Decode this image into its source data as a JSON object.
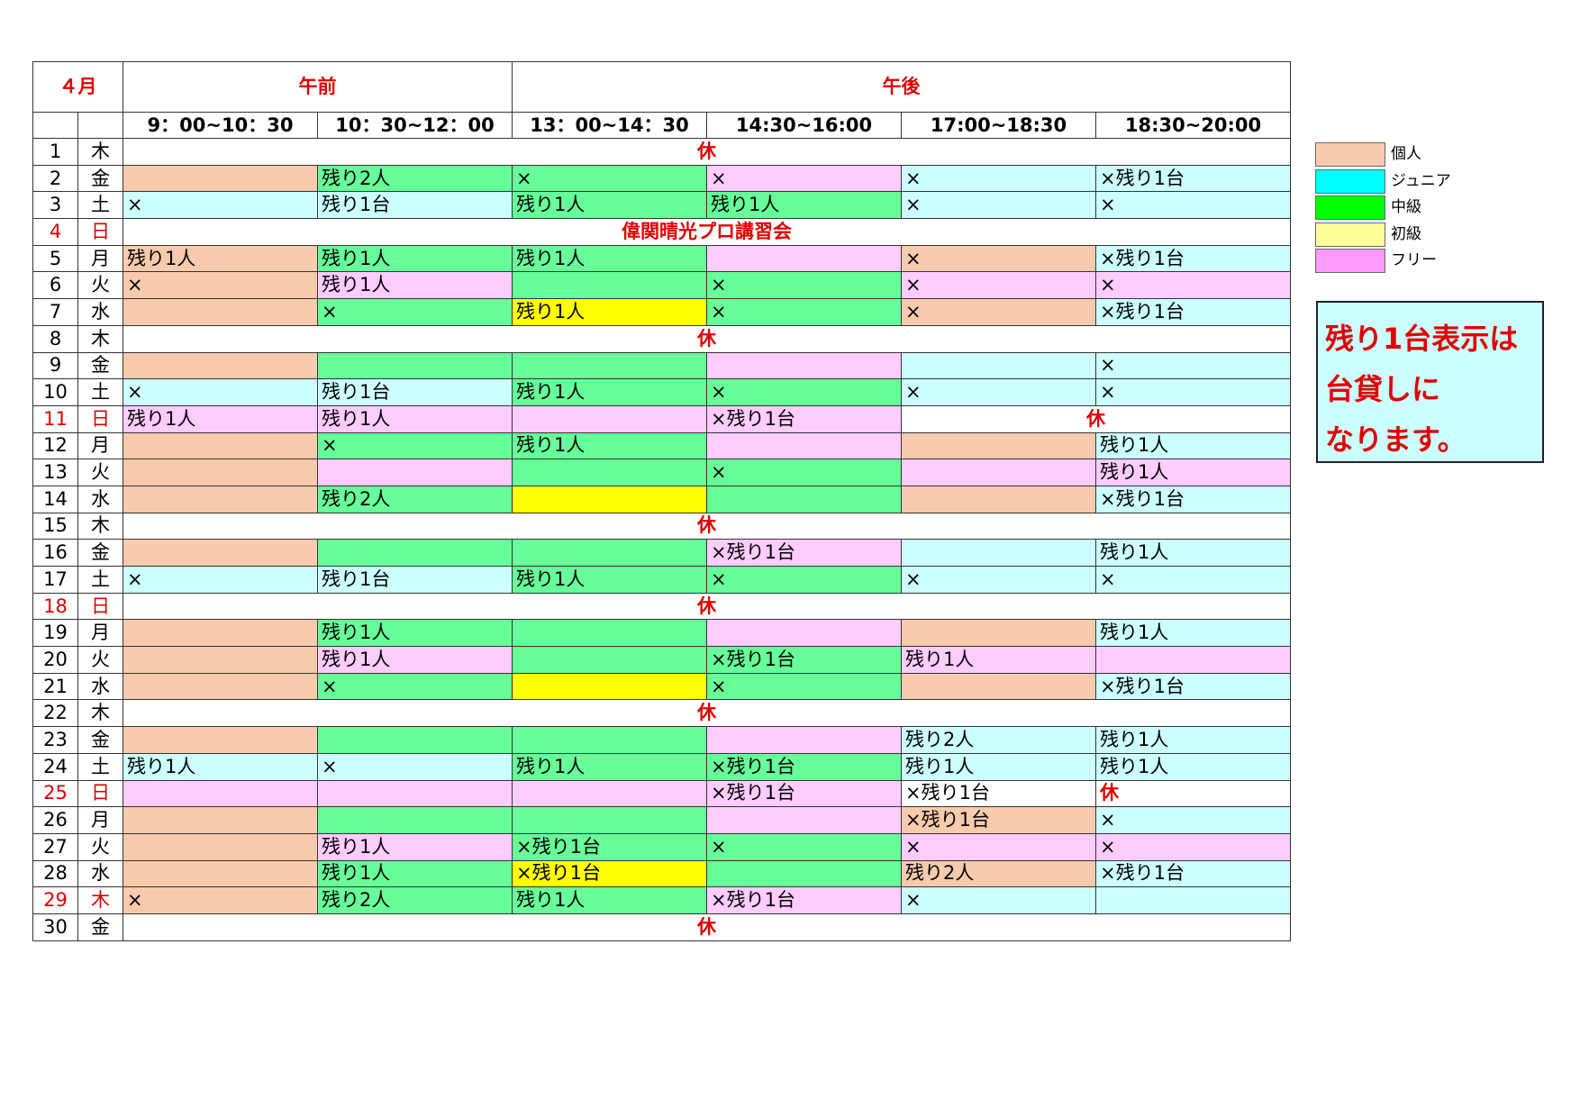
{
  "header": {
    "month": "４月",
    "am": "午前",
    "pm": "午後",
    "times": [
      "9：00~10：30",
      "10：30~12：00",
      "13：00~14：30",
      "14:30~16:00",
      "17:00~18:30",
      "18:30~20:00"
    ]
  },
  "colors": {
    "kojin": "#f8cbad",
    "junior": "#ccffff",
    "chukyu": "#66ff99",
    "shokyu": "#ffff00",
    "free": "#ffccff",
    "holiday_red": "#e00000"
  },
  "rows": [
    {
      "day": "1",
      "dow": "木",
      "red": false,
      "closed": "休"
    },
    {
      "day": "2",
      "dow": "金",
      "red": false,
      "slots": [
        {
          "t": "",
          "c": "kojin"
        },
        {
          "t": "残り2人",
          "c": "chukyu"
        },
        {
          "t": "×",
          "c": "chukyu"
        },
        {
          "t": "×",
          "c": "free"
        },
        {
          "t": "×",
          "c": "junior"
        },
        {
          "t": "×残り1台",
          "c": "junior"
        }
      ]
    },
    {
      "day": "3",
      "dow": "土",
      "red": false,
      "slots": [
        {
          "t": "×",
          "c": "junior"
        },
        {
          "t": "残り1台",
          "c": "junior"
        },
        {
          "t": "残り1人",
          "c": "chukyu"
        },
        {
          "t": "残り1人",
          "c": "chukyu"
        },
        {
          "t": "×",
          "c": "junior"
        },
        {
          "t": "×",
          "c": "junior"
        }
      ]
    },
    {
      "day": "4",
      "dow": "日",
      "red": true,
      "closed": "偉関晴光プロ講習会"
    },
    {
      "day": "5",
      "dow": "月",
      "red": false,
      "slots": [
        {
          "t": "残り1人",
          "c": "kojin"
        },
        {
          "t": "残り1人",
          "c": "chukyu"
        },
        {
          "t": "残り1人",
          "c": "chukyu"
        },
        {
          "t": "",
          "c": "free"
        },
        {
          "t": "×",
          "c": "kojin"
        },
        {
          "t": "×残り1台",
          "c": "junior"
        }
      ]
    },
    {
      "day": "6",
      "dow": "火",
      "red": false,
      "slots": [
        {
          "t": "×",
          "c": "kojin"
        },
        {
          "t": "残り1人",
          "c": "free"
        },
        {
          "t": "",
          "c": "chukyu"
        },
        {
          "t": "×",
          "c": "chukyu"
        },
        {
          "t": "×",
          "c": "free"
        },
        {
          "t": "×",
          "c": "free"
        }
      ]
    },
    {
      "day": "7",
      "dow": "水",
      "red": false,
      "slots": [
        {
          "t": "",
          "c": "kojin"
        },
        {
          "t": "×",
          "c": "chukyu"
        },
        {
          "t": "残り1人",
          "c": "shokyu"
        },
        {
          "t": "×",
          "c": "chukyu"
        },
        {
          "t": "×",
          "c": "kojin"
        },
        {
          "t": "×残り1台",
          "c": "junior"
        }
      ]
    },
    {
      "day": "8",
      "dow": "木",
      "red": false,
      "closed": "休"
    },
    {
      "day": "9",
      "dow": "金",
      "red": false,
      "slots": [
        {
          "t": "",
          "c": "kojin"
        },
        {
          "t": "",
          "c": "chukyu"
        },
        {
          "t": "",
          "c": "chukyu"
        },
        {
          "t": "",
          "c": "free"
        },
        {
          "t": "",
          "c": "junior"
        },
        {
          "t": "×",
          "c": "junior"
        }
      ]
    },
    {
      "day": "10",
      "dow": "土",
      "red": false,
      "slots": [
        {
          "t": "×",
          "c": "junior"
        },
        {
          "t": "残り1台",
          "c": "junior"
        },
        {
          "t": "残り1人",
          "c": "chukyu"
        },
        {
          "t": "×",
          "c": "chukyu"
        },
        {
          "t": "×",
          "c": "junior"
        },
        {
          "t": "×",
          "c": "junior"
        }
      ]
    },
    {
      "day": "11",
      "dow": "日",
      "red": true,
      "slots": [
        {
          "t": "残り1人",
          "c": "free"
        },
        {
          "t": "残り1人",
          "c": "free"
        },
        {
          "t": "",
          "c": "free"
        },
        {
          "t": "×残り1台",
          "c": "free"
        }
      ],
      "late_closed": "休"
    },
    {
      "day": "12",
      "dow": "月",
      "red": false,
      "slots": [
        {
          "t": "",
          "c": "kojin"
        },
        {
          "t": "×",
          "c": "chukyu"
        },
        {
          "t": "残り1人",
          "c": "chukyu"
        },
        {
          "t": "",
          "c": "free"
        },
        {
          "t": "",
          "c": "kojin"
        },
        {
          "t": "残り1人",
          "c": "junior"
        }
      ]
    },
    {
      "day": "13",
      "dow": "火",
      "red": false,
      "slots": [
        {
          "t": "",
          "c": "kojin"
        },
        {
          "t": "",
          "c": "free"
        },
        {
          "t": "",
          "c": "chukyu"
        },
        {
          "t": "×",
          "c": "chukyu"
        },
        {
          "t": "",
          "c": "free"
        },
        {
          "t": "残り1人",
          "c": "free"
        }
      ]
    },
    {
      "day": "14",
      "dow": "水",
      "red": false,
      "slots": [
        {
          "t": "",
          "c": "kojin"
        },
        {
          "t": "残り2人",
          "c": "chukyu"
        },
        {
          "t": "",
          "c": "shokyu"
        },
        {
          "t": "",
          "c": "chukyu"
        },
        {
          "t": "",
          "c": "kojin"
        },
        {
          "t": "×残り1台",
          "c": "junior"
        }
      ]
    },
    {
      "day": "15",
      "dow": "木",
      "red": false,
      "closed": "休"
    },
    {
      "day": "16",
      "dow": "金",
      "red": false,
      "slots": [
        {
          "t": "",
          "c": "kojin"
        },
        {
          "t": "",
          "c": "chukyu"
        },
        {
          "t": "",
          "c": "chukyu"
        },
        {
          "t": "×残り1台",
          "c": "free"
        },
        {
          "t": "",
          "c": "junior"
        },
        {
          "t": "残り1人",
          "c": "junior"
        }
      ]
    },
    {
      "day": "17",
      "dow": "土",
      "red": false,
      "slots": [
        {
          "t": "×",
          "c": "junior"
        },
        {
          "t": "残り1台",
          "c": "junior"
        },
        {
          "t": "残り1人",
          "c": "chukyu"
        },
        {
          "t": "×",
          "c": "chukyu"
        },
        {
          "t": "×",
          "c": "junior"
        },
        {
          "t": "×",
          "c": "junior"
        }
      ]
    },
    {
      "day": "18",
      "dow": "日",
      "red": true,
      "closed": "休"
    },
    {
      "day": "19",
      "dow": "月",
      "red": false,
      "slots": [
        {
          "t": "",
          "c": "kojin"
        },
        {
          "t": "残り1人",
          "c": "chukyu"
        },
        {
          "t": "",
          "c": "chukyu"
        },
        {
          "t": "",
          "c": "free"
        },
        {
          "t": "",
          "c": "kojin"
        },
        {
          "t": "残り1人",
          "c": "junior"
        }
      ]
    },
    {
      "day": "20",
      "dow": "火",
      "red": false,
      "slots": [
        {
          "t": "",
          "c": "kojin"
        },
        {
          "t": "残り1人",
          "c": "free"
        },
        {
          "t": "",
          "c": "chukyu"
        },
        {
          "t": "×残り1台",
          "c": "chukyu"
        },
        {
          "t": "残り1人",
          "c": "free"
        },
        {
          "t": "",
          "c": "free"
        }
      ]
    },
    {
      "day": "21",
      "dow": "水",
      "red": false,
      "slots": [
        {
          "t": "",
          "c": "kojin"
        },
        {
          "t": "×",
          "c": "chukyu"
        },
        {
          "t": "",
          "c": "shokyu"
        },
        {
          "t": "×",
          "c": "chukyu"
        },
        {
          "t": "",
          "c": "kojin"
        },
        {
          "t": "×残り1台",
          "c": "junior"
        }
      ]
    },
    {
      "day": "22",
      "dow": "木",
      "red": false,
      "closed": "休"
    },
    {
      "day": "23",
      "dow": "金",
      "red": false,
      "slots": [
        {
          "t": "",
          "c": "kojin"
        },
        {
          "t": "",
          "c": "chukyu"
        },
        {
          "t": "",
          "c": "chukyu"
        },
        {
          "t": "",
          "c": "free"
        },
        {
          "t": "残り2人",
          "c": "junior"
        },
        {
          "t": "残り1人",
          "c": "junior"
        }
      ]
    },
    {
      "day": "24",
      "dow": "土",
      "red": false,
      "slots": [
        {
          "t": "残り1人",
          "c": "junior"
        },
        {
          "t": "×",
          "c": "junior"
        },
        {
          "t": "残り1人",
          "c": "chukyu"
        },
        {
          "t": "×残り1台",
          "c": "chukyu"
        },
        {
          "t": "残り1人",
          "c": "junior"
        },
        {
          "t": "残り1人",
          "c": "junior"
        }
      ]
    },
    {
      "day": "25",
      "dow": "日",
      "red": true,
      "slots": [
        {
          "t": "",
          "c": "free"
        },
        {
          "t": "",
          "c": "free"
        },
        {
          "t": "",
          "c": "free"
        },
        {
          "t": "×残り1台",
          "c": "free"
        },
        {
          "t": "×残り1台",
          "c": "none"
        }
      ],
      "late_closed": "休"
    },
    {
      "day": "26",
      "dow": "月",
      "red": false,
      "slots": [
        {
          "t": "",
          "c": "kojin"
        },
        {
          "t": "",
          "c": "chukyu"
        },
        {
          "t": "",
          "c": "chukyu"
        },
        {
          "t": "",
          "c": "free"
        },
        {
          "t": "×残り1台",
          "c": "kojin"
        },
        {
          "t": "×",
          "c": "junior"
        }
      ]
    },
    {
      "day": "27",
      "dow": "火",
      "red": false,
      "slots": [
        {
          "t": "",
          "c": "kojin"
        },
        {
          "t": "残り1人",
          "c": "free"
        },
        {
          "t": "×残り1台",
          "c": "chukyu"
        },
        {
          "t": "×",
          "c": "chukyu"
        },
        {
          "t": "×",
          "c": "free"
        },
        {
          "t": "×",
          "c": "free"
        }
      ]
    },
    {
      "day": "28",
      "dow": "水",
      "red": false,
      "slots": [
        {
          "t": "",
          "c": "kojin"
        },
        {
          "t": "残り1人",
          "c": "chukyu"
        },
        {
          "t": "×残り1台",
          "c": "shokyu"
        },
        {
          "t": "",
          "c": "chukyu"
        },
        {
          "t": "残り2人",
          "c": "kojin"
        },
        {
          "t": "×残り1台",
          "c": "junior"
        }
      ]
    },
    {
      "day": "29",
      "dow": "木",
      "red": true,
      "slots": [
        {
          "t": "×",
          "c": "kojin"
        },
        {
          "t": "残り2人",
          "c": "chukyu"
        },
        {
          "t": "残り1人",
          "c": "chukyu"
        },
        {
          "t": "×残り1台",
          "c": "free"
        },
        {
          "t": "×",
          "c": "junior"
        },
        {
          "t": "",
          "c": "junior"
        }
      ]
    },
    {
      "day": "30",
      "dow": "金",
      "red": false,
      "closed": "休"
    }
  ],
  "legend": [
    {
      "label": "個人",
      "color": "#f8cbad"
    },
    {
      "label": "ジュニア",
      "color": "#00ffff"
    },
    {
      "label": "中級",
      "color": "#00ff00"
    },
    {
      "label": "初級",
      "color": "#ffff99"
    },
    {
      "label": "フリー",
      "color": "#ff99ff"
    }
  ],
  "note": {
    "lines": [
      "残り1台表示は",
      "台貸しに",
      "なります。"
    ]
  }
}
